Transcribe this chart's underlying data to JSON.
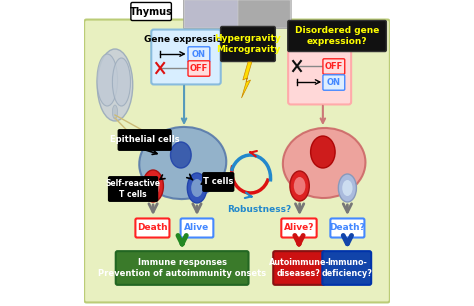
{
  "bg_color": "#e8f0c0",
  "thymus_label": "Thymus",
  "gene_expr_label": "Gene expression",
  "hypergravity_label": "Hypergravity\nMicrogravity",
  "disordered_label": "Disordered gene\nexpression?",
  "epithelial_label": "Epithelial cells",
  "self_reactive_label": "Self-reactive\nT cells",
  "tcells_label": "T cells",
  "robustness_label": "Robustness?",
  "death_label": "Death",
  "alive_label": "Alive",
  "alive_q_label": "Alive?",
  "death_q_label": "Death?",
  "immune_label": "Immune responses\nPrevention of autoimmunity onsets",
  "autoimmune_label": "Autoimmune-\ndiseases?",
  "immunodef_label": "Immuno-\ndeficiency?",
  "on_color": "#4488ff",
  "off_color": "#ff2222",
  "green_bg": "#3a7a2a",
  "red_bg": "#cc1111",
  "blue_bg": "#1144aa",
  "yellow_text": "#ffff00",
  "black_bg": "#111111",
  "cell_blue_face": "#88aacc",
  "cell_blue_edge": "#5577aa",
  "nucleus_blue": "#3355aa",
  "cell_pink_face": "#ee9999",
  "cell_pink_edge": "#cc6666",
  "nucleus_red": "#cc1111",
  "tcell_red_face": "#dd2222",
  "tcell_red_inner": "#ee7777",
  "tcell_blue_face": "#3355bb",
  "tcell_blue_inner": "#7799cc",
  "tcell_light_face": "#aabbdd",
  "tcell_light_inner": "#ccddf0",
  "gene_box_blue_face": "#d8eeff",
  "gene_box_blue_edge": "#88bbdd",
  "gene_box_pink_face": "#ffd8d8",
  "gene_box_pink_edge": "#ffaaaa"
}
